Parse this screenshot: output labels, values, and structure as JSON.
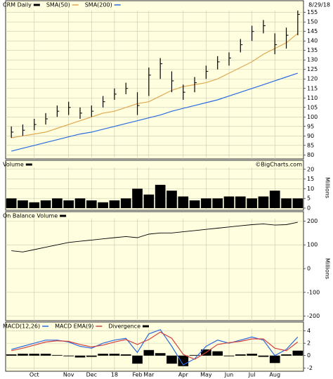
{
  "chart_data": [
    {
      "type": "ohlc",
      "name": "CRM Daily",
      "color": "#000000",
      "date": "8/29/18",
      "high": [
        95,
        96,
        99,
        102,
        106,
        108,
        105,
        106,
        111,
        115,
        118,
        113,
        126,
        131,
        124,
        117,
        121,
        127,
        132,
        134,
        141,
        148,
        151,
        144,
        147,
        156
      ],
      "low": [
        89,
        90,
        93,
        96,
        100,
        101,
        99,
        100,
        105,
        109,
        112,
        101,
        111,
        120,
        113,
        109,
        113,
        120,
        125,
        127,
        134,
        140,
        144,
        133,
        136,
        143
      ],
      "close": [
        92,
        93,
        96,
        99,
        103,
        105,
        102,
        103,
        108,
        112,
        115,
        106,
        122,
        128,
        119,
        113,
        118,
        124,
        129,
        131,
        138,
        145,
        148,
        138,
        143,
        154
      ],
      "series": [
        {
          "name": "SMA(50)",
          "color": "#e0a850",
          "values": [
            89,
            90,
            91,
            92,
            94,
            96,
            98,
            100,
            102,
            103,
            105,
            107,
            108,
            111,
            114,
            116,
            117,
            118,
            120,
            123,
            126,
            129,
            133,
            136,
            139,
            144
          ]
        },
        {
          "name": "SMA(200)",
          "color": "#2a6ae0",
          "values": [
            82,
            83.5,
            85,
            86.5,
            88,
            89.5,
            91,
            92,
            93.5,
            95,
            96.5,
            98,
            99.5,
            101,
            103,
            104.5,
            106,
            107.5,
            109,
            111,
            113,
            115,
            117,
            119,
            121,
            123
          ]
        }
      ],
      "ylim": [
        79,
        156
      ],
      "yticks": [
        80,
        85,
        90,
        95,
        100,
        105,
        110,
        115,
        120,
        125,
        130,
        135,
        140,
        145,
        150,
        155
      ],
      "grid": true
    },
    {
      "type": "bar",
      "name": "Volume",
      "credit": "©BigCharts.com",
      "color": "#000000",
      "values": [
        5,
        4,
        3,
        4,
        5,
        4,
        5,
        4,
        3,
        4,
        5,
        10,
        7,
        12,
        9,
        6,
        4,
        5,
        5,
        6,
        6,
        5,
        6,
        9,
        5,
        5
      ],
      "ylim": [
        0,
        21
      ],
      "yticks": [
        0,
        5,
        10,
        15,
        20
      ],
      "y_label": "Millions",
      "grid": true
    },
    {
      "type": "line",
      "name": "On Balance Volume",
      "color": "#000000",
      "values": [
        75,
        70,
        80,
        90,
        100,
        110,
        115,
        120,
        125,
        130,
        135,
        130,
        145,
        150,
        150,
        155,
        160,
        165,
        170,
        175,
        180,
        185,
        188,
        183,
        185,
        195
      ],
      "ylim": [
        -210,
        210
      ],
      "yticks": [
        200,
        100,
        0,
        -100,
        -200
      ],
      "y_label": "Millions",
      "grid": true
    },
    {
      "type": "macd",
      "categories": [
        null,
        null,
        "Oct",
        null,
        null,
        "Nov",
        null,
        "Dec",
        null,
        "18",
        null,
        "Feb",
        "Mar",
        null,
        null,
        "Apr",
        null,
        "May",
        null,
        "Jun",
        null,
        "Jul",
        null,
        "Aug",
        null,
        null
      ],
      "series": [
        {
          "name": "MACD(12,26)",
          "color": "#2a6ae0",
          "style": "line",
          "values": [
            1,
            1.5,
            2,
            2.5,
            2.5,
            2.2,
            1.5,
            1.2,
            2,
            2.5,
            2.8,
            0.5,
            3.5,
            4.2,
            1.5,
            -1.5,
            -0.5,
            1.5,
            2.5,
            2,
            2.5,
            3,
            2.5,
            0,
            1,
            3
          ]
        },
        {
          "name": "MACD EMA(9)",
          "color": "#d04040",
          "style": "line",
          "values": [
            0.8,
            1.2,
            1.7,
            2.2,
            2.4,
            2.3,
            1.8,
            1.4,
            1.7,
            2.2,
            2.6,
            1.8,
            2.6,
            3.8,
            2.8,
            0.2,
            -0.6,
            0.5,
            1.8,
            2.1,
            2.3,
            2.7,
            2.7,
            1.2,
            0.8,
            2.2
          ]
        },
        {
          "name": "Divergence",
          "color": "#000000",
          "style": "bar",
          "values": [
            0.2,
            0.3,
            0.3,
            0.3,
            0.1,
            -0.1,
            -0.3,
            -0.2,
            0.3,
            0.3,
            0.2,
            -1.3,
            0.9,
            0.4,
            -1.3,
            -1.7,
            0.1,
            1.0,
            0.7,
            -0.1,
            0.2,
            0.3,
            -0.2,
            -1.2,
            0.2,
            0.8
          ]
        }
      ],
      "ylim": [
        -2.3,
        4.4
      ],
      "yticks": [
        4,
        2,
        0,
        -2
      ],
      "grid": true
    }
  ]
}
